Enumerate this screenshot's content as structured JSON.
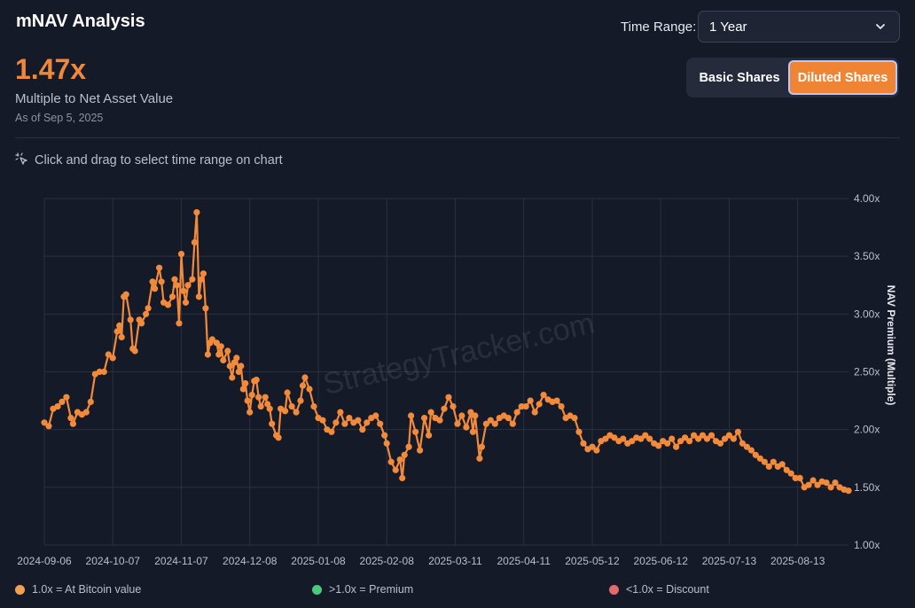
{
  "header": {
    "title": "mNAV Analysis",
    "time_range_label": "Time Range:",
    "time_range_value": "1 Year"
  },
  "summary": {
    "value": "1.47x",
    "label": "Multiple to Net Asset Value",
    "as_of": "As of Sep 5, 2025"
  },
  "share_toggle": {
    "basic_label": "Basic Shares",
    "diluted_label": "Diluted Shares",
    "selected": "Diluted Shares"
  },
  "hint": {
    "text": "Click and drag to select time range on chart",
    "icon": "sparkle-cursor-icon"
  },
  "legend": [
    {
      "label": "1.0x = At Bitcoin value",
      "color": "#f0a050"
    },
    {
      "label": ">1.0x = Premium",
      "color": "#4cc97a"
    },
    {
      "label": "<1.0x = Discount",
      "color": "#e46a6a"
    }
  ],
  "colors": {
    "accent": "#ef8434",
    "line": "#f28a3c",
    "background": "#151a28",
    "grid": "#2a3040"
  },
  "chart_data": {
    "type": "line",
    "watermark": "StrategyTracker.com",
    "ylabel": "NAV Premium (Multiple)",
    "ylim": [
      1.0,
      4.0
    ],
    "y_ticks": [
      "1.00x",
      "1.50x",
      "2.00x",
      "2.50x",
      "3.00x",
      "3.50x",
      "4.00x"
    ],
    "y_tick_values": [
      1.0,
      1.5,
      2.0,
      2.5,
      3.0,
      3.5,
      4.0
    ],
    "x_ticks": [
      "2024-09-06",
      "2024-10-07",
      "2024-11-07",
      "2024-12-08",
      "2025-01-08",
      "2025-02-08",
      "2025-03-11",
      "2025-04-11",
      "2025-05-12",
      "2025-06-12",
      "2025-07-13",
      "2025-08-13"
    ],
    "xlim": [
      "2024-09-06",
      "2025-09-05"
    ],
    "grid": true,
    "series": [
      {
        "values": [
          [
            "2024-09-06",
            2.06
          ],
          [
            "2024-09-08",
            2.03
          ],
          [
            "2024-09-10",
            2.18
          ],
          [
            "2024-09-12",
            2.2
          ],
          [
            "2024-09-14",
            2.24
          ],
          [
            "2024-09-16",
            2.28
          ],
          [
            "2024-09-18",
            2.1
          ],
          [
            "2024-09-19",
            2.05
          ],
          [
            "2024-09-21",
            2.15
          ],
          [
            "2024-09-23",
            2.13
          ],
          [
            "2024-09-25",
            2.15
          ],
          [
            "2024-09-27",
            2.24
          ],
          [
            "2024-09-29",
            2.48
          ],
          [
            "2024-10-01",
            2.5
          ],
          [
            "2024-10-03",
            2.5
          ],
          [
            "2024-10-05",
            2.65
          ],
          [
            "2024-10-07",
            2.62
          ],
          [
            "2024-10-09",
            2.85
          ],
          [
            "2024-10-10",
            2.9
          ],
          [
            "2024-10-11",
            2.8
          ],
          [
            "2024-10-12",
            3.15
          ],
          [
            "2024-10-13",
            3.17
          ],
          [
            "2024-10-15",
            2.95
          ],
          [
            "2024-10-16",
            2.7
          ],
          [
            "2024-10-17",
            2.68
          ],
          [
            "2024-10-19",
            2.95
          ],
          [
            "2024-10-20",
            2.92
          ],
          [
            "2024-10-22",
            3.0
          ],
          [
            "2024-10-23",
            3.05
          ],
          [
            "2024-10-25",
            3.28
          ],
          [
            "2024-10-26",
            3.22
          ],
          [
            "2024-10-28",
            3.4
          ],
          [
            "2024-10-29",
            3.28
          ],
          [
            "2024-10-30",
            3.1
          ],
          [
            "2024-11-01",
            3.08
          ],
          [
            "2024-11-03",
            3.15
          ],
          [
            "2024-11-04",
            3.3
          ],
          [
            "2024-11-05",
            3.25
          ],
          [
            "2024-11-06",
            2.92
          ],
          [
            "2024-11-07",
            3.52
          ],
          [
            "2024-11-08",
            3.2
          ],
          [
            "2024-11-09",
            3.1
          ],
          [
            "2024-11-10",
            3.25
          ],
          [
            "2024-11-12",
            3.3
          ],
          [
            "2024-11-13",
            3.62
          ],
          [
            "2024-11-14",
            3.88
          ],
          [
            "2024-11-15",
            3.15
          ],
          [
            "2024-11-16",
            3.3
          ],
          [
            "2024-11-17",
            3.35
          ],
          [
            "2024-11-18",
            3.05
          ],
          [
            "2024-11-19",
            2.65
          ],
          [
            "2024-11-20",
            2.75
          ],
          [
            "2024-11-21",
            2.78
          ],
          [
            "2024-11-23",
            2.75
          ],
          [
            "2024-11-24",
            2.65
          ],
          [
            "2024-11-25",
            2.72
          ],
          [
            "2024-11-26",
            2.6
          ],
          [
            "2024-11-28",
            2.68
          ],
          [
            "2024-11-29",
            2.55
          ],
          [
            "2024-11-30",
            2.45
          ],
          [
            "2024-12-01",
            2.58
          ],
          [
            "2024-12-02",
            2.62
          ],
          [
            "2024-12-03",
            2.5
          ],
          [
            "2024-12-04",
            2.55
          ],
          [
            "2024-12-05",
            2.35
          ],
          [
            "2024-12-06",
            2.4
          ],
          [
            "2024-12-07",
            2.25
          ],
          [
            "2024-12-08",
            2.15
          ],
          [
            "2024-12-09",
            2.3
          ],
          [
            "2024-12-10",
            2.42
          ],
          [
            "2024-12-11",
            2.43
          ],
          [
            "2024-12-12",
            2.28
          ],
          [
            "2024-12-13",
            2.2
          ],
          [
            "2024-12-15",
            2.28
          ],
          [
            "2024-12-16",
            2.22
          ],
          [
            "2024-12-17",
            2.18
          ],
          [
            "2024-12-18",
            2.05
          ],
          [
            "2024-12-20",
            1.95
          ],
          [
            "2024-12-21",
            1.93
          ],
          [
            "2024-12-22",
            2.18
          ],
          [
            "2024-12-24",
            2.16
          ],
          [
            "2024-12-25",
            2.32
          ],
          [
            "2024-12-27",
            2.2
          ],
          [
            "2024-12-29",
            2.15
          ],
          [
            "2024-12-31",
            2.25
          ],
          [
            "2025-01-01",
            2.38
          ],
          [
            "2025-01-02",
            2.45
          ],
          [
            "2025-01-04",
            2.35
          ],
          [
            "2025-01-06",
            2.2
          ],
          [
            "2025-01-08",
            2.1
          ],
          [
            "2025-01-10",
            2.08
          ],
          [
            "2025-01-12",
            2.0
          ],
          [
            "2025-01-14",
            1.98
          ],
          [
            "2025-01-16",
            2.06
          ],
          [
            "2025-01-18",
            2.15
          ],
          [
            "2025-01-20",
            2.05
          ],
          [
            "2025-01-22",
            2.1
          ],
          [
            "2025-01-24",
            2.06
          ],
          [
            "2025-01-26",
            2.08
          ],
          [
            "2025-01-28",
            2.0
          ],
          [
            "2025-01-30",
            2.06
          ],
          [
            "2025-02-01",
            2.1
          ],
          [
            "2025-02-03",
            2.12
          ],
          [
            "2025-02-05",
            2.05
          ],
          [
            "2025-02-07",
            1.95
          ],
          [
            "2025-02-08",
            1.88
          ],
          [
            "2025-02-10",
            1.72
          ],
          [
            "2025-02-12",
            1.65
          ],
          [
            "2025-02-14",
            1.74
          ],
          [
            "2025-02-15",
            1.58
          ],
          [
            "2025-02-16",
            1.78
          ],
          [
            "2025-02-18",
            1.85
          ],
          [
            "2025-02-19",
            2.12
          ],
          [
            "2025-02-21",
            1.98
          ],
          [
            "2025-02-23",
            1.82
          ],
          [
            "2025-02-25",
            2.1
          ],
          [
            "2025-02-27",
            1.95
          ],
          [
            "2025-02-28",
            2.15
          ],
          [
            "2025-03-02",
            2.1
          ],
          [
            "2025-03-04",
            2.08
          ],
          [
            "2025-03-06",
            2.18
          ],
          [
            "2025-03-08",
            2.28
          ],
          [
            "2025-03-10",
            2.2
          ],
          [
            "2025-03-12",
            2.05
          ],
          [
            "2025-03-14",
            2.12
          ],
          [
            "2025-03-16",
            2.02
          ],
          [
            "2025-03-18",
            2.15
          ],
          [
            "2025-03-19",
            1.98
          ],
          [
            "2025-03-20",
            2.12
          ],
          [
            "2025-03-22",
            1.75
          ],
          [
            "2025-03-23",
            1.85
          ],
          [
            "2025-03-25",
            2.05
          ],
          [
            "2025-03-27",
            2.08
          ],
          [
            "2025-03-29",
            2.05
          ],
          [
            "2025-03-31",
            2.1
          ],
          [
            "2025-04-02",
            2.12
          ],
          [
            "2025-04-04",
            2.1
          ],
          [
            "2025-04-06",
            2.05
          ],
          [
            "2025-04-08",
            2.15
          ],
          [
            "2025-04-10",
            2.2
          ],
          [
            "2025-04-12",
            2.2
          ],
          [
            "2025-04-14",
            2.25
          ],
          [
            "2025-04-16",
            2.15
          ],
          [
            "2025-04-18",
            2.22
          ],
          [
            "2025-04-20",
            2.3
          ],
          [
            "2025-04-22",
            2.26
          ],
          [
            "2025-04-24",
            2.24
          ],
          [
            "2025-04-26",
            2.25
          ],
          [
            "2025-04-28",
            2.2
          ],
          [
            "2025-04-30",
            2.1
          ],
          [
            "2025-05-02",
            2.12
          ],
          [
            "2025-05-04",
            2.1
          ],
          [
            "2025-05-06",
            1.98
          ],
          [
            "2025-05-08",
            1.88
          ],
          [
            "2025-05-10",
            1.83
          ],
          [
            "2025-05-12",
            1.85
          ],
          [
            "2025-05-14",
            1.82
          ],
          [
            "2025-05-16",
            1.9
          ],
          [
            "2025-05-18",
            1.92
          ],
          [
            "2025-05-20",
            1.95
          ],
          [
            "2025-05-22",
            1.93
          ],
          [
            "2025-05-24",
            1.9
          ],
          [
            "2025-05-26",
            1.92
          ],
          [
            "2025-05-28",
            1.88
          ],
          [
            "2025-05-30",
            1.9
          ],
          [
            "2025-06-01",
            1.93
          ],
          [
            "2025-06-03",
            1.92
          ],
          [
            "2025-06-05",
            1.95
          ],
          [
            "2025-06-07",
            1.92
          ],
          [
            "2025-06-09",
            1.88
          ],
          [
            "2025-06-11",
            1.86
          ],
          [
            "2025-06-13",
            1.9
          ],
          [
            "2025-06-15",
            1.88
          ],
          [
            "2025-06-17",
            1.92
          ],
          [
            "2025-06-19",
            1.85
          ],
          [
            "2025-06-21",
            1.9
          ],
          [
            "2025-06-23",
            1.93
          ],
          [
            "2025-06-25",
            1.9
          ],
          [
            "2025-06-27",
            1.95
          ],
          [
            "2025-06-29",
            1.92
          ],
          [
            "2025-07-01",
            1.95
          ],
          [
            "2025-07-03",
            1.92
          ],
          [
            "2025-07-05",
            1.95
          ],
          [
            "2025-07-07",
            1.9
          ],
          [
            "2025-07-09",
            1.88
          ],
          [
            "2025-07-11",
            1.92
          ],
          [
            "2025-07-13",
            1.95
          ],
          [
            "2025-07-15",
            1.92
          ],
          [
            "2025-07-17",
            1.98
          ],
          [
            "2025-07-19",
            1.88
          ],
          [
            "2025-07-21",
            1.85
          ],
          [
            "2025-07-23",
            1.82
          ],
          [
            "2025-07-25",
            1.78
          ],
          [
            "2025-07-27",
            1.75
          ],
          [
            "2025-07-29",
            1.72
          ],
          [
            "2025-07-31",
            1.68
          ],
          [
            "2025-08-02",
            1.72
          ],
          [
            "2025-08-04",
            1.68
          ],
          [
            "2025-08-06",
            1.7
          ],
          [
            "2025-08-08",
            1.65
          ],
          [
            "2025-08-10",
            1.62
          ],
          [
            "2025-08-12",
            1.58
          ],
          [
            "2025-08-14",
            1.58
          ],
          [
            "2025-08-16",
            1.5
          ],
          [
            "2025-08-18",
            1.52
          ],
          [
            "2025-08-20",
            1.56
          ],
          [
            "2025-08-22",
            1.52
          ],
          [
            "2025-08-24",
            1.55
          ],
          [
            "2025-08-26",
            1.54
          ],
          [
            "2025-08-28",
            1.5
          ],
          [
            "2025-08-30",
            1.54
          ],
          [
            "2025-09-01",
            1.5
          ],
          [
            "2025-09-03",
            1.48
          ],
          [
            "2025-09-05",
            1.47
          ]
        ]
      }
    ]
  }
}
